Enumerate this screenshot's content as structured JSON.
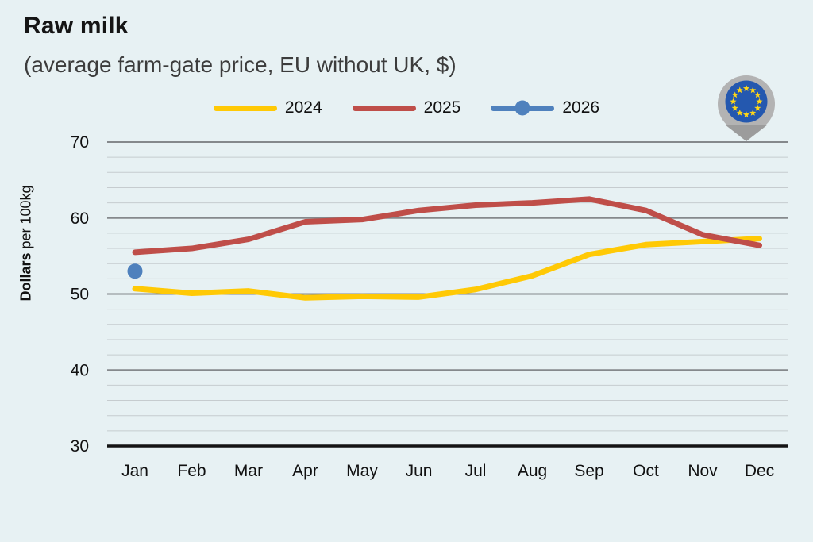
{
  "header": {
    "title": "Raw milk",
    "subtitle": "(average farm-gate price, EU without UK, $)"
  },
  "ylabel": {
    "bold": "Dollars",
    "rest": " per 100kg"
  },
  "legend": {
    "position": "top-center",
    "items": [
      {
        "label": "2024",
        "color": "#FFC905",
        "marker": false
      },
      {
        "label": "2025",
        "color": "#BF4E49",
        "marker": false
      },
      {
        "label": "2026",
        "color": "#4F81BD",
        "marker": true
      }
    ]
  },
  "icons": {
    "eu_pin": "eu-flag-location-pin",
    "eu_pin_colors": {
      "pin_gray": "#B3B3B3",
      "pin_tip_gray": "#9C9C9C",
      "flag_blue": "#2458AF",
      "star_yellow": "#FFD617"
    }
  },
  "colors": {
    "background": "#E7F1F3",
    "series_2024": "#FFC905",
    "series_2025": "#BF4E49",
    "series_2026": "#4F81BD",
    "grid_minor": "#C6CCCF",
    "grid_major": "#85898C",
    "axis_line": "#141414",
    "text": "#111111"
  },
  "chart_data": {
    "type": "line",
    "title": "Raw milk",
    "subtitle": "(average farm-gate price, EU without UK, $)",
    "xlabel": "",
    "ylabel": "Dollars per 100kg",
    "x": [
      "Jan",
      "Feb",
      "Mar",
      "Apr",
      "May",
      "Jun",
      "Jul",
      "Aug",
      "Sep",
      "Oct",
      "Nov",
      "Dec"
    ],
    "series": [
      {
        "name": "2024",
        "color": "#FFC905",
        "style": "line",
        "values": [
          50.7,
          50.1,
          50.4,
          49.5,
          49.7,
          49.6,
          50.6,
          52.4,
          55.2,
          56.5,
          56.9,
          57.3
        ]
      },
      {
        "name": "2025",
        "color": "#BF4E49",
        "style": "line",
        "values": [
          55.5,
          56.0,
          57.2,
          59.5,
          59.8,
          61.0,
          61.7,
          62.0,
          62.5,
          61.0,
          57.8,
          56.4
        ]
      },
      {
        "name": "2026",
        "color": "#4F81BD",
        "style": "dot",
        "values": [
          53.0,
          null,
          null,
          null,
          null,
          null,
          null,
          null,
          null,
          null,
          null,
          null
        ]
      }
    ],
    "ylim": [
      30,
      70
    ],
    "yticks": [
      30,
      40,
      50,
      60,
      70
    ],
    "minor_tick_step": 2,
    "grid": "horizontal",
    "legend_position": "top-center"
  }
}
